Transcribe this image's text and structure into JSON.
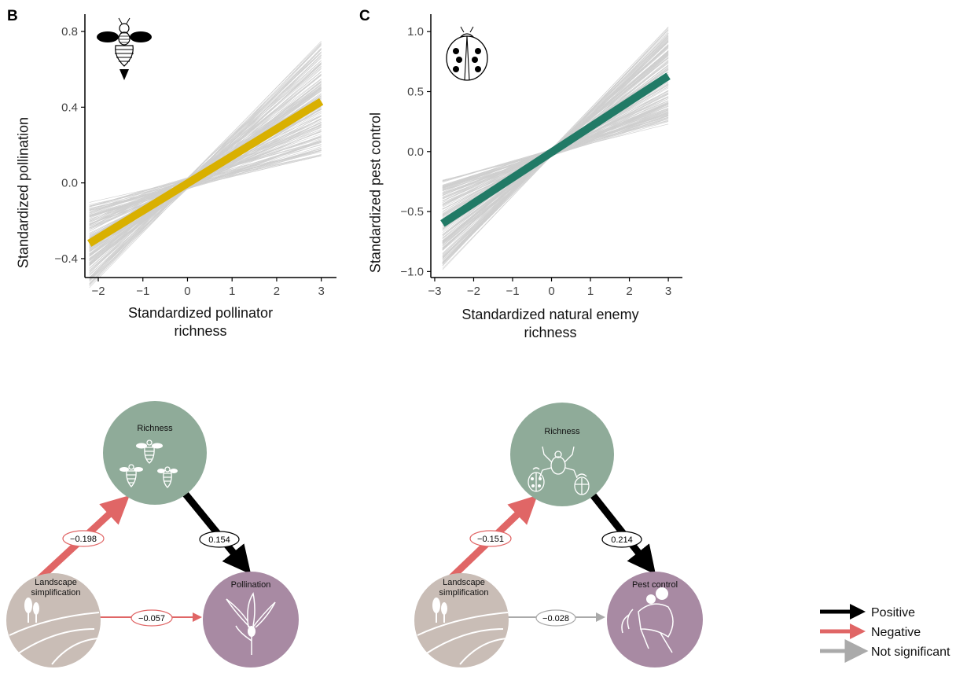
{
  "colors": {
    "positive": "#000000",
    "negative": "#e06666",
    "not_significant": "#aaaaaa",
    "pollination_line": "#d9b000",
    "pest_line": "#217a66",
    "richness_node": "#8fab99",
    "landscape_node": "#c9bdb6",
    "service_node": "#a88aa3",
    "posterior_lines": "#cfcfcf"
  },
  "chart_data": [
    {
      "panel": "B",
      "type": "line",
      "icon": "bee-icon",
      "xlabel": "Standardized pollinator richness",
      "ylabel": "Standardized pollination",
      "xlim": [
        -2.3,
        3.2
      ],
      "ylim": [
        -0.5,
        0.85
      ],
      "xticks": [
        -2,
        -1,
        0,
        1,
        2,
        3
      ],
      "yticks": [
        -0.4,
        0.0,
        0.4,
        0.8
      ],
      "ytick_labels": [
        "−0.4",
        "0.0",
        "0.4",
        "0.8"
      ],
      "xtick_labels": [
        "−2",
        "−1",
        "0",
        "1",
        "2",
        "3"
      ],
      "fit": {
        "x": [
          -2.2,
          3.0
        ],
        "y": [
          -0.32,
          0.43
        ]
      },
      "posterior_band": {
        "x_start": -2.2,
        "x_end": 3.0,
        "start_range": [
          -0.53,
          -0.1
        ],
        "end_range": [
          0.15,
          0.75
        ]
      }
    },
    {
      "panel": "C",
      "type": "line",
      "icon": "ladybird-icon",
      "xlabel": "Standardized natural enemy richness",
      "ylabel": "Standardized pest control",
      "xlim": [
        -3.1,
        3.2
      ],
      "ylim": [
        -1.05,
        1.08
      ],
      "xticks": [
        -3,
        -2,
        -1,
        0,
        1,
        2,
        3
      ],
      "yticks": [
        -1.0,
        -0.5,
        0.0,
        0.5,
        1.0
      ],
      "ytick_labels": [
        "−1.0",
        "−0.5",
        "0.0",
        "0.5",
        "1.0"
      ],
      "xtick_labels": [
        "−3",
        "−2",
        "−1",
        "0",
        "1",
        "2",
        "3"
      ],
      "fit": {
        "x": [
          -2.8,
          3.0
        ],
        "y": [
          -0.6,
          0.63
        ]
      },
      "posterior_band": {
        "x_start": -2.8,
        "x_end": 3.0,
        "start_range": [
          -0.97,
          -0.23
        ],
        "end_range": [
          0.23,
          1.02
        ]
      }
    }
  ],
  "diagrams": [
    {
      "richness": "Richness",
      "landscape": "Landscape simplification",
      "service": "Pollination",
      "coef_landscape_richness": "−0.198",
      "coef_richness_service": "0.154",
      "coef_landscape_service": "−0.057"
    },
    {
      "richness": "Richness",
      "landscape": "Landscape simplification",
      "service": "Pest control",
      "coef_landscape_richness": "−0.151",
      "coef_richness_service": "0.214",
      "coef_landscape_service": "−0.028"
    }
  ],
  "legend": {
    "positive": "Positive",
    "negative": "Negative",
    "not_significant": "Not significant"
  }
}
